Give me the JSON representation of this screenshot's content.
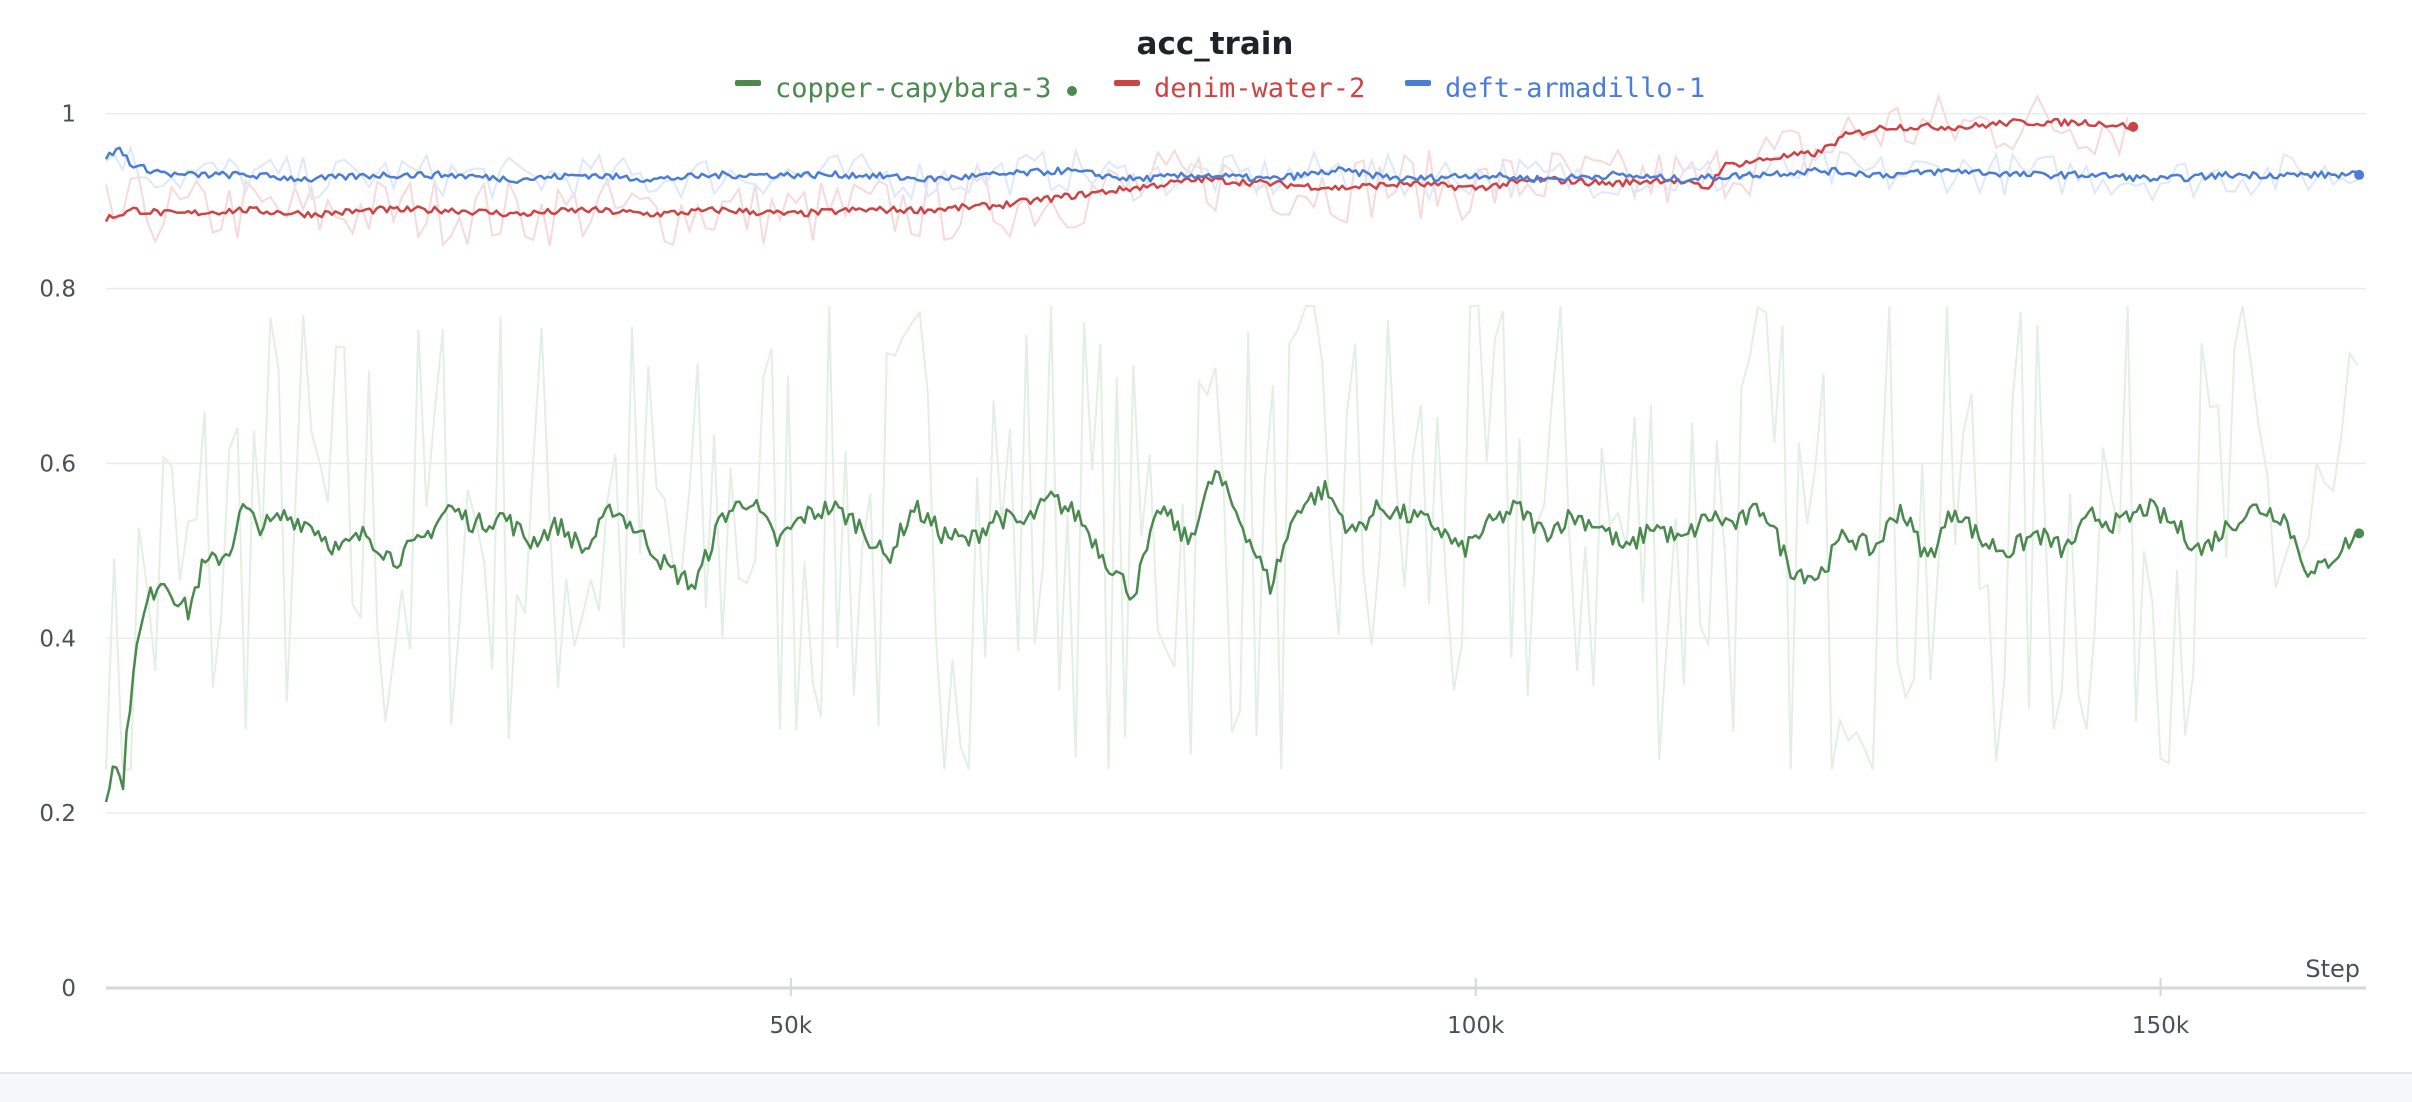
{
  "chart_data": {
    "type": "line",
    "title": "acc_train",
    "xlabel": "Step",
    "ylabel": "",
    "xlim": [
      0,
      165000
    ],
    "ylim": [
      0,
      1.05
    ],
    "x_ticks": [
      {
        "value": 50000,
        "label": "50k"
      },
      {
        "value": 100000,
        "label": "100k"
      },
      {
        "value": 150000,
        "label": "150k"
      }
    ],
    "y_ticks": [
      {
        "value": 0,
        "label": "0"
      },
      {
        "value": 0.2,
        "label": "0.2"
      },
      {
        "value": 0.4,
        "label": "0.4"
      },
      {
        "value": 0.6,
        "label": "0.6"
      },
      {
        "value": 0.8,
        "label": "0.8"
      },
      {
        "value": 1,
        "label": "1"
      }
    ],
    "grid": true,
    "legend_position": "top",
    "smoothing": true,
    "series": [
      {
        "name": "copper-capybara-3",
        "color": "#4a8a4f",
        "raw_color": "#e3efe3",
        "active": true,
        "x": [
          0,
          500,
          1200,
          2000,
          3000,
          4000,
          5000,
          6000,
          7000,
          8000,
          9000,
          10000,
          11000,
          12000,
          13000,
          15000,
          17000,
          19000,
          21000,
          23000,
          25000,
          27000,
          29000,
          31000,
          33000,
          35000,
          37000,
          39000,
          41000,
          43000,
          45000,
          47000,
          49000,
          51000,
          53000,
          55000,
          57000,
          59000,
          61000,
          63000,
          65000,
          67000,
          69000,
          71000,
          73000,
          75000,
          77000,
          79000,
          81000,
          83000,
          85000,
          87000,
          89000,
          91000,
          93000,
          95000,
          97000,
          99000,
          101000,
          103000,
          105000,
          107000,
          109000,
          111000,
          113000,
          115000,
          117000,
          119000,
          121000,
          123000,
          125000,
          127000,
          129000,
          131000,
          133000,
          135000,
          137000,
          139000,
          141000,
          143000,
          145000,
          147000,
          149000,
          151000,
          153000,
          155000,
          157000,
          159000,
          161000,
          163000,
          164500
        ],
        "y": [
          0.22,
          0.26,
          0.23,
          0.37,
          0.44,
          0.47,
          0.45,
          0.43,
          0.48,
          0.49,
          0.5,
          0.55,
          0.53,
          0.53,
          0.54,
          0.53,
          0.5,
          0.52,
          0.49,
          0.51,
          0.55,
          0.53,
          0.54,
          0.51,
          0.53,
          0.5,
          0.55,
          0.52,
          0.48,
          0.46,
          0.54,
          0.56,
          0.51,
          0.54,
          0.55,
          0.53,
          0.49,
          0.55,
          0.52,
          0.51,
          0.54,
          0.53,
          0.56,
          0.54,
          0.49,
          0.45,
          0.55,
          0.51,
          0.59,
          0.53,
          0.46,
          0.55,
          0.57,
          0.52,
          0.55,
          0.54,
          0.53,
          0.5,
          0.53,
          0.55,
          0.52,
          0.54,
          0.53,
          0.5,
          0.53,
          0.51,
          0.54,
          0.53,
          0.55,
          0.48,
          0.47,
          0.52,
          0.5,
          0.55,
          0.49,
          0.55,
          0.51,
          0.5,
          0.52,
          0.5,
          0.54,
          0.53,
          0.55,
          0.53,
          0.5,
          0.53,
          0.55,
          0.54,
          0.47,
          0.5,
          0.52
        ]
      },
      {
        "name": "denim-water-2",
        "color": "#cc4444",
        "raw_color": "#f6dada",
        "active": false,
        "x": [
          0,
          2000,
          5000,
          10000,
          15000,
          20000,
          25000,
          30000,
          35000,
          40000,
          45000,
          50000,
          55000,
          60000,
          65000,
          70000,
          75000,
          80000,
          85000,
          90000,
          95000,
          100000,
          105000,
          110000,
          114000,
          117000,
          118000,
          120000,
          122000,
          125000,
          127000,
          130000,
          133000,
          136000,
          139000,
          142000,
          145000,
          148000
        ],
        "y": [
          0.88,
          0.89,
          0.885,
          0.89,
          0.885,
          0.89,
          0.89,
          0.885,
          0.89,
          0.885,
          0.89,
          0.885,
          0.89,
          0.89,
          0.895,
          0.905,
          0.915,
          0.925,
          0.92,
          0.915,
          0.92,
          0.915,
          0.925,
          0.92,
          0.925,
          0.915,
          0.94,
          0.945,
          0.95,
          0.955,
          0.975,
          0.985,
          0.985,
          0.985,
          0.99,
          0.99,
          0.99,
          0.985
        ]
      },
      {
        "name": "deft-armadillo-1",
        "color": "#4a7dd6",
        "raw_color": "#dfe8fa",
        "active": false,
        "x": [
          0,
          1000,
          2000,
          5000,
          10000,
          15000,
          20000,
          25000,
          30000,
          35000,
          40000,
          45000,
          50000,
          55000,
          60000,
          65000,
          70000,
          75000,
          80000,
          85000,
          90000,
          95000,
          100000,
          105000,
          110000,
          115000,
          120000,
          125000,
          130000,
          135000,
          140000,
          145000,
          150000,
          155000,
          160000,
          164500
        ],
        "y": [
          0.95,
          0.96,
          0.94,
          0.93,
          0.93,
          0.925,
          0.93,
          0.93,
          0.925,
          0.93,
          0.925,
          0.93,
          0.93,
          0.93,
          0.925,
          0.93,
          0.935,
          0.925,
          0.93,
          0.925,
          0.935,
          0.925,
          0.93,
          0.925,
          0.93,
          0.925,
          0.93,
          0.935,
          0.93,
          0.935,
          0.93,
          0.93,
          0.925,
          0.93,
          0.93,
          0.93
        ]
      }
    ]
  }
}
